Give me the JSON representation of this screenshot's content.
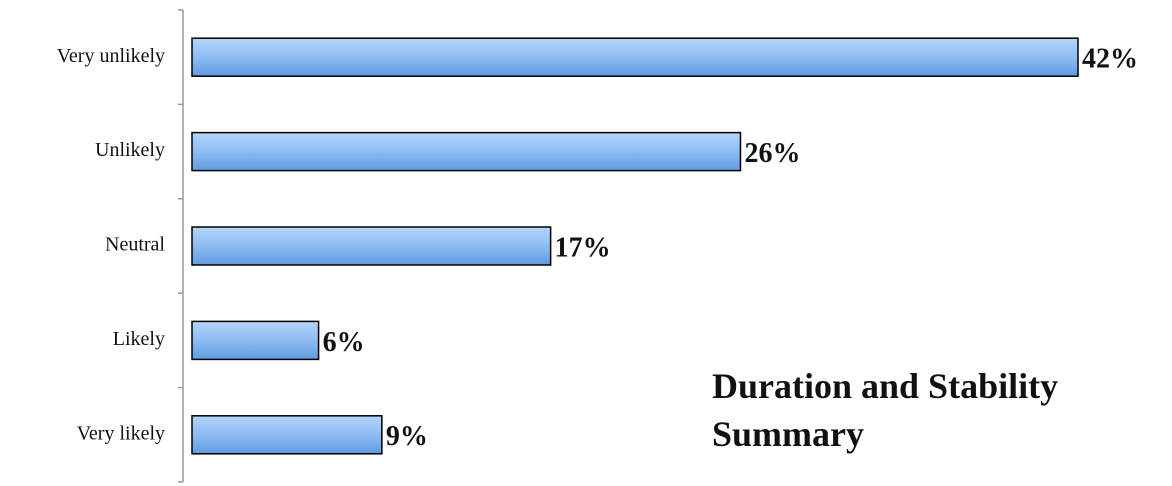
{
  "chart_data": {
    "type": "bar",
    "orientation": "horizontal",
    "title": "Duration and Stability Summary",
    "categories": [
      "Very unlikely",
      "Unlikely",
      "Neutral",
      "Likely",
      "Very likely"
    ],
    "values": [
      42,
      26,
      17,
      6,
      9
    ],
    "value_labels": [
      "42%",
      "26%",
      "17%",
      "6%",
      "9%"
    ],
    "color": "#7fb2ee"
  }
}
